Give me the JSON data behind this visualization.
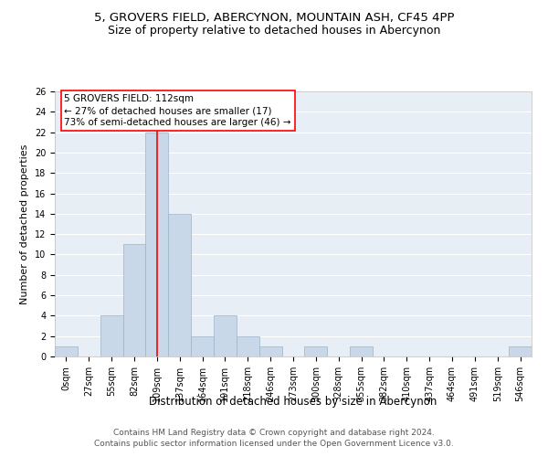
{
  "title": "5, GROVERS FIELD, ABERCYNON, MOUNTAIN ASH, CF45 4PP",
  "subtitle": "Size of property relative to detached houses in Abercynon",
  "xlabel": "Distribution of detached houses by size in Abercynon",
  "ylabel": "Number of detached properties",
  "bar_color": "#c8d8e8",
  "bar_edgecolor": "#9ab4ca",
  "vline_color": "red",
  "vline_x": 4,
  "annotation_text": "5 GROVERS FIELD: 112sqm\n← 27% of detached houses are smaller (17)\n73% of semi-detached houses are larger (46) →",
  "annotation_box_edgecolor": "red",
  "bin_labels": [
    "0sqm",
    "27sqm",
    "55sqm",
    "82sqm",
    "109sqm",
    "137sqm",
    "164sqm",
    "191sqm",
    "218sqm",
    "246sqm",
    "273sqm",
    "300sqm",
    "328sqm",
    "355sqm",
    "382sqm",
    "410sqm",
    "437sqm",
    "464sqm",
    "491sqm",
    "519sqm",
    "546sqm"
  ],
  "bar_values": [
    1,
    0,
    4,
    11,
    22,
    14,
    2,
    4,
    2,
    1,
    0,
    1,
    0,
    1,
    0,
    0,
    0,
    0,
    0,
    0,
    1
  ],
  "ylim": [
    0,
    26
  ],
  "yticks": [
    0,
    2,
    4,
    6,
    8,
    10,
    12,
    14,
    16,
    18,
    20,
    22,
    24,
    26
  ],
  "background_color": "#e8eef5",
  "footer_text": "Contains HM Land Registry data © Crown copyright and database right 2024.\nContains public sector information licensed under the Open Government Licence v3.0.",
  "title_fontsize": 9.5,
  "subtitle_fontsize": 9,
  "xlabel_fontsize": 8.5,
  "ylabel_fontsize": 8,
  "tick_fontsize": 7,
  "footer_fontsize": 6.5,
  "annotation_fontsize": 7.5
}
